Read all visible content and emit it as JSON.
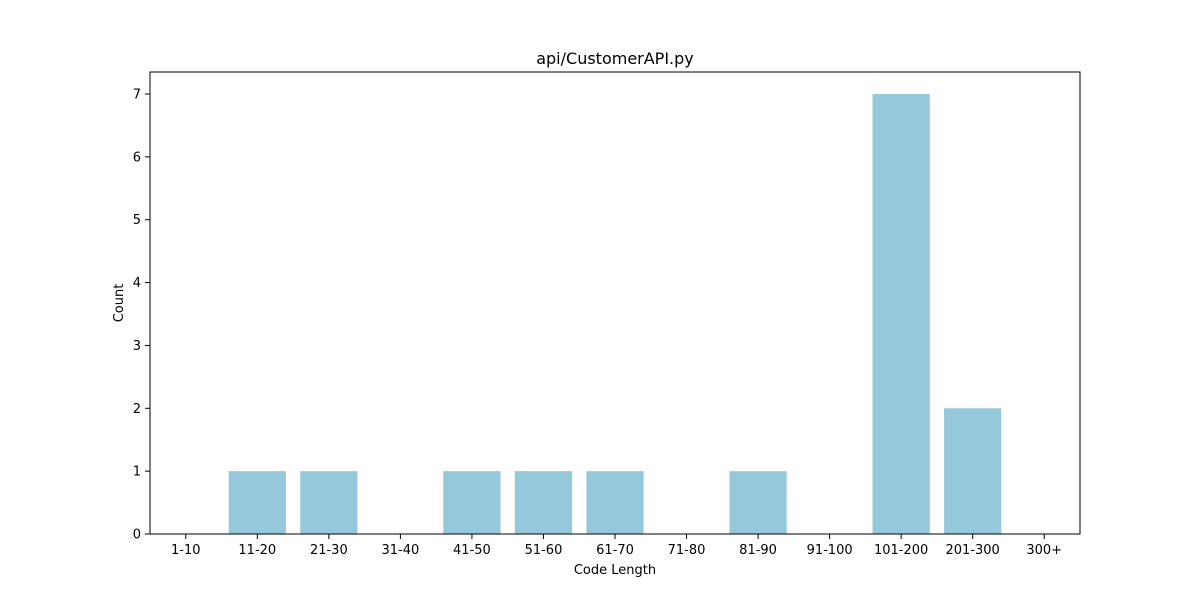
{
  "chart_data": {
    "type": "bar",
    "title": "api/CustomerAPI.py",
    "xlabel": "Code Length",
    "ylabel": "Count",
    "categories": [
      "1-10",
      "11-20",
      "21-30",
      "31-40",
      "41-50",
      "51-60",
      "61-70",
      "71-80",
      "81-90",
      "91-100",
      "101-200",
      "201-300",
      "300+"
    ],
    "values": [
      0,
      1,
      1,
      0,
      1,
      1,
      1,
      0,
      1,
      0,
      7,
      2,
      0
    ],
    "ylim": [
      0,
      7.35
    ],
    "yticks": [
      0,
      1,
      2,
      3,
      4,
      5,
      6,
      7
    ],
    "bar_color": "#96c8dc",
    "grid": false,
    "legend": "none"
  }
}
